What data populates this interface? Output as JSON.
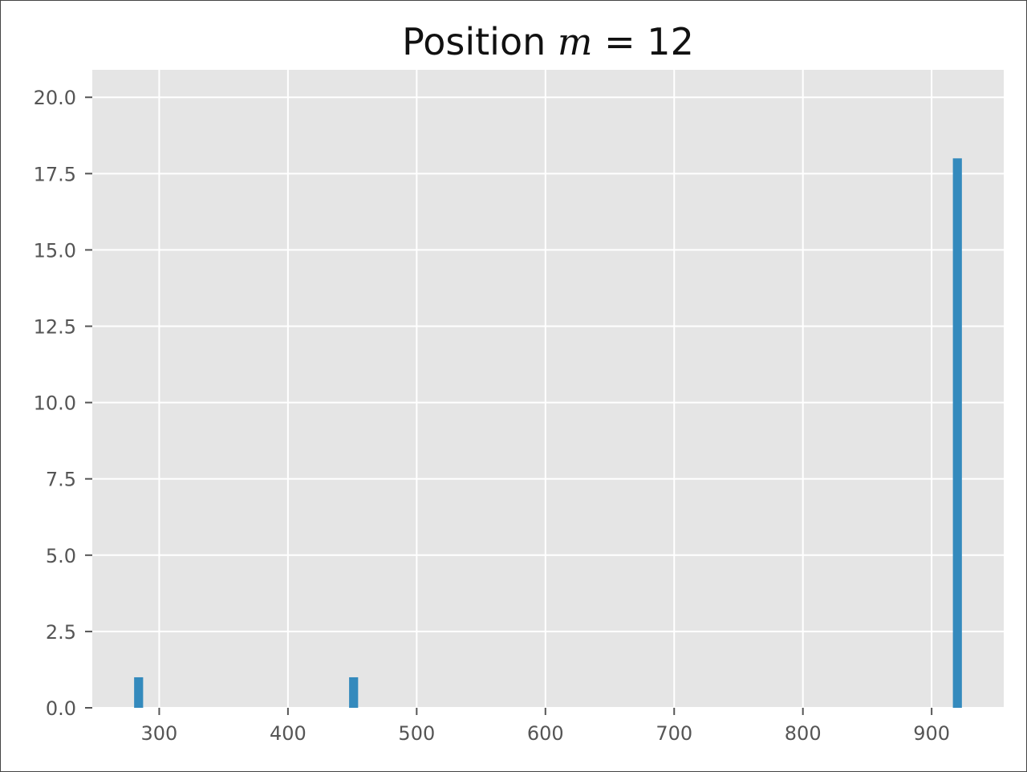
{
  "chart_data": {
    "type": "bar",
    "title": "Position ",
    "title_math": {
      "var": "m",
      "op": " = ",
      "value": "12"
    },
    "xlabel": "",
    "ylabel": "",
    "xlim": [
      248,
      956
    ],
    "ylim": [
      0,
      20.9
    ],
    "grid": true,
    "bar_width": 7,
    "xticks": [
      300,
      400,
      500,
      600,
      700,
      800,
      900
    ],
    "yticks": [
      0.0,
      2.5,
      5.0,
      7.5,
      10.0,
      12.5,
      15.0,
      17.5,
      20.0
    ],
    "x": [
      284,
      451,
      920
    ],
    "values": [
      1,
      1,
      18
    ],
    "colors": {
      "bar": "#348abd",
      "plot_bg": "#e5e5e5",
      "grid": "#ffffff"
    }
  }
}
